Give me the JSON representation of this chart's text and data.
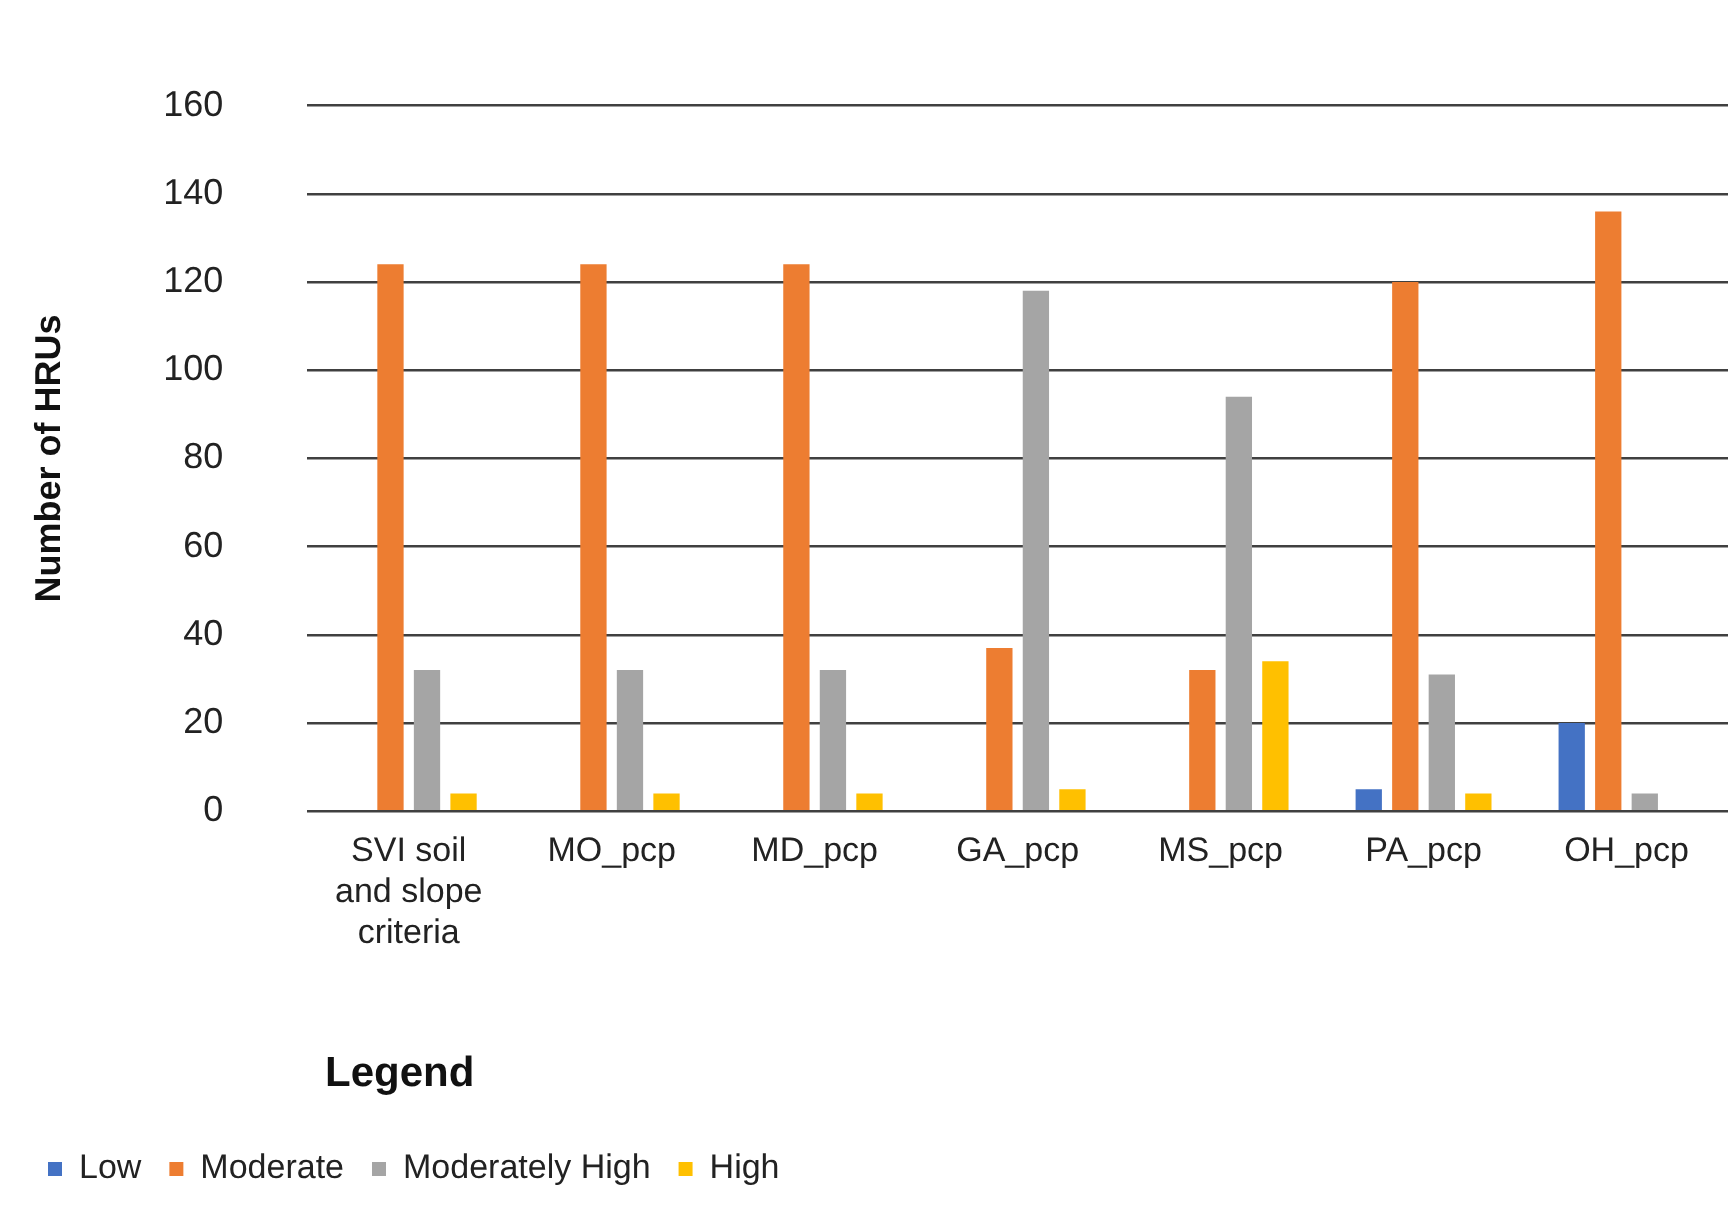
{
  "chart_data": {
    "type": "bar",
    "ylabel": "Number of HRUs",
    "legend_title": "Legend",
    "categories": [
      "SVI soil and slope criteria",
      "MO_pcp",
      "MD_pcp",
      "GA_pcp",
      "MS_pcp",
      "PA_pcp",
      "OH_pcp"
    ],
    "series": [
      {
        "name": "Low",
        "color": "#4472c4",
        "values": [
          0,
          0,
          0,
          0,
          0,
          5,
          20
        ]
      },
      {
        "name": "Moderate",
        "color": "#ed7d31",
        "values": [
          124,
          124,
          124,
          37,
          32,
          120,
          136
        ]
      },
      {
        "name": "Moderately High",
        "color": "#a5a5a5",
        "values": [
          32,
          32,
          32,
          118,
          94,
          31,
          4
        ]
      },
      {
        "name": "High",
        "color": "#ffc000",
        "values": [
          4,
          4,
          4,
          5,
          34,
          4,
          0
        ]
      }
    ],
    "ylim": [
      0,
      160
    ],
    "yticks": [
      0,
      20,
      40,
      60,
      80,
      100,
      120,
      140,
      160
    ],
    "grid": "y",
    "legend": "bottom left"
  }
}
